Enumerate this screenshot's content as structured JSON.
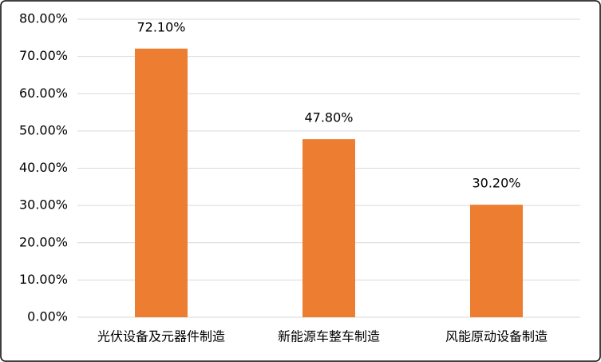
{
  "chart_data": {
    "type": "bar",
    "categories": [
      "光伏设备及元器件制造",
      "新能源车整车制造",
      "风能原动设备制造"
    ],
    "values": [
      72.1,
      47.8,
      30.2
    ],
    "value_labels": [
      "72.10%",
      "47.80%",
      "30.20%"
    ],
    "color": "#ed7d31",
    "ylim": [
      0,
      80
    ],
    "yticks": [
      {
        "value": 0,
        "label": "0.00%"
      },
      {
        "value": 10,
        "label": "10.00%"
      },
      {
        "value": 20,
        "label": "20.00%"
      },
      {
        "value": 30,
        "label": "30.00%"
      },
      {
        "value": 40,
        "label": "40.00%"
      },
      {
        "value": 50,
        "label": "50.00%"
      },
      {
        "value": 60,
        "label": "60.00%"
      },
      {
        "value": 70,
        "label": "70.00%"
      },
      {
        "value": 80,
        "label": "80.00%"
      }
    ],
    "grid": true
  }
}
